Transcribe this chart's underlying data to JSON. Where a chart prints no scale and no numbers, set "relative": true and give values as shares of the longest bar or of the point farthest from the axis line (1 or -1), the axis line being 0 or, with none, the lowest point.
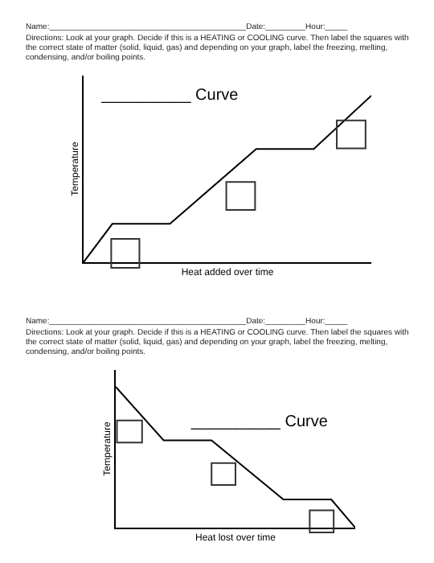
{
  "chart_data": [
    {
      "type": "line",
      "relative": true,
      "title": "__________ Curve",
      "xlabel": "Heat added over time",
      "ylabel": "Temperature",
      "color": "#000000",
      "marker": "none",
      "annotations": [
        "Name:____________________________________________Date:_________Hour:_____",
        "Directions:  Look at your graph.  Decide if this is a HEATING or COOLING curve.  Then label the squares with the correct state of matter (solid, liquid, gas) and depending on your graph, label the freezing, melting, condensing, and/or boiling points."
      ],
      "categories": [
        null,
        null,
        null,
        null,
        null,
        null,
        null,
        null,
        null,
        null,
        null
      ],
      "values": [
        0,
        0.23,
        null,
        0.23,
        null,
        null,
        0.68,
        null,
        0.68,
        null,
        1
      ]
    },
    {
      "type": "line",
      "relative": true,
      "title": "__________ Curve",
      "xlabel": "Heat lost over time",
      "ylabel": "Temperature",
      "color": "#000000",
      "marker": "none",
      "annotations": [
        "Name:____________________________________________Date:_________Hour:_____",
        "Directions:  Look at your graph.  Decide if this is a HEATING or COOLING curve.  Then label the squares with the correct state of matter (solid, liquid, gas) and depending on your graph, label the freezing, melting, condensing, and/or boiling points."
      ],
      "categories": [
        null,
        null,
        null,
        null,
        null,
        null,
        null,
        null,
        null,
        null,
        null
      ],
      "values": [
        1,
        null,
        0.62,
        null,
        0.62,
        null,
        null,
        0.2,
        null,
        0.2,
        0
      ]
    }
  ]
}
